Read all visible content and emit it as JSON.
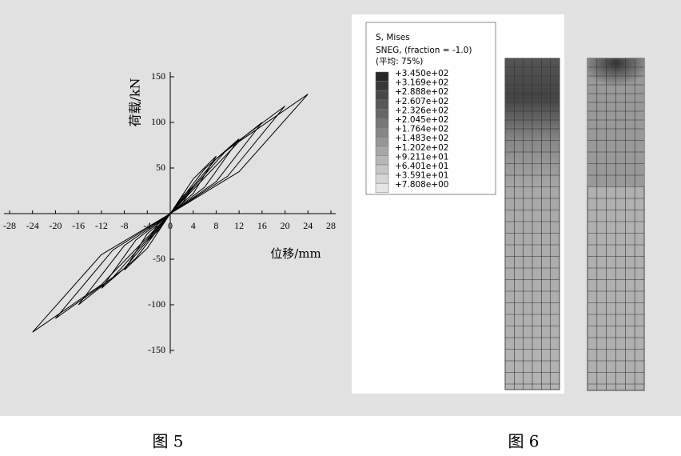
{
  "chart_data": {
    "type": "line",
    "y_label": "荷载/kN",
    "x_label": "位移/mm",
    "xlim": [
      -28,
      28
    ],
    "ylim": [
      -150,
      150
    ],
    "xticks": [
      -28,
      -24,
      -20,
      -16,
      -12,
      -8,
      -4,
      0,
      4,
      8,
      12,
      16,
      20,
      24,
      28
    ],
    "yticks": [
      -150,
      -100,
      -50,
      0,
      50,
      100,
      150
    ],
    "series": [
      {
        "color": "#000000",
        "x": [
          4,
          2,
          0,
          -2,
          -4,
          -2,
          0,
          2,
          4
        ],
        "values": [
          30,
          10,
          0,
          -18,
          -30,
          -10,
          0,
          18,
          30
        ]
      },
      {
        "color": "#000000",
        "x": [
          8,
          4,
          0,
          -4,
          -8,
          -4,
          0,
          4,
          8
        ],
        "values": [
          63,
          22,
          0,
          -38,
          -62,
          -22,
          0,
          38,
          63
        ]
      },
      {
        "color": "#000000",
        "x": [
          12,
          6,
          0,
          -6,
          -12,
          -6,
          0,
          6,
          12
        ],
        "values": [
          82,
          29,
          0,
          -49,
          -82,
          -29,
          0,
          49,
          82
        ]
      },
      {
        "color": "#000000",
        "x": [
          16,
          8,
          0,
          -8,
          -16,
          -8,
          0,
          8,
          16
        ],
        "values": [
          100,
          35,
          0,
          -60,
          -100,
          -35,
          0,
          60,
          100
        ]
      },
      {
        "color": "#000000",
        "x": [
          20,
          10,
          0,
          -10,
          -20,
          -10,
          0,
          10,
          20
        ],
        "values": [
          118,
          41,
          0,
          -70,
          -115,
          -40,
          0,
          71,
          118
        ]
      },
      {
        "color": "#000000",
        "x": [
          24,
          12,
          0,
          -12,
          -24,
          -12,
          0,
          12,
          24
        ],
        "values": [
          131,
          46,
          0,
          -78,
          -130,
          -45,
          0,
          79,
          131
        ]
      }
    ]
  },
  "legend": {
    "title": [
      "S, Mises",
      "SNEG, (fraction = -1.0)",
      "(平均: 75%)"
    ],
    "entries": [
      "+3.450e+02",
      "+3.169e+02",
      "+2.888e+02",
      "+2.607e+02",
      "+2.326e+02",
      "+2.045e+02",
      "+1.764e+02",
      "+1.483e+02",
      "+1.202e+02",
      "+9.211e+01",
      "+6.401e+01",
      "+3.591e+01",
      "+7.808e+00"
    ]
  },
  "captions": [
    "图 5",
    "图 6"
  ]
}
